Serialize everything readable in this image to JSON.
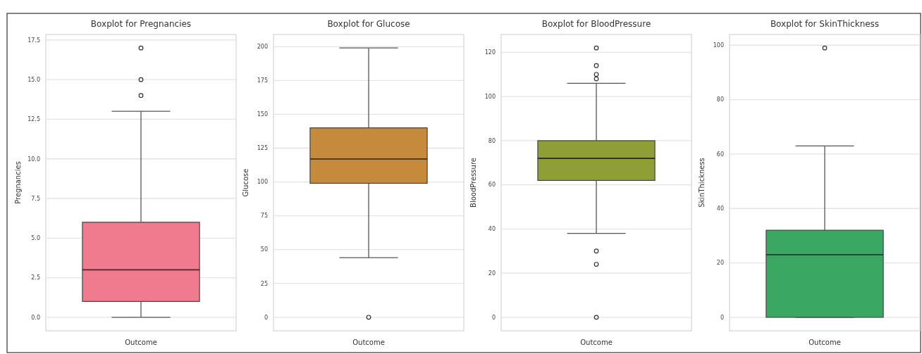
{
  "chart_data": [
    {
      "type": "box",
      "title": "Boxplot for Pregnancies",
      "xlabel": "Outcome",
      "ylabel": "Pregnancies",
      "categories": [
        null
      ],
      "color": "#f07a8e",
      "boxes": [
        {
          "low": 0,
          "q1": 1,
          "median": 3,
          "q3": 6,
          "high": 13,
          "outliers": [
            14,
            15,
            17
          ]
        }
      ],
      "ylim": [
        -0.85,
        17.85
      ],
      "yticks": [
        {
          "value": 0,
          "label": "0.0"
        },
        {
          "value": 2.5,
          "label": "2.5"
        },
        {
          "value": 5,
          "label": "5.0"
        },
        {
          "value": 7.5,
          "label": "7.5"
        },
        {
          "value": 10,
          "label": "10.0"
        },
        {
          "value": 12.5,
          "label": "12.5"
        },
        {
          "value": 15,
          "label": "15.0"
        },
        {
          "value": 17.5,
          "label": "17.5"
        }
      ],
      "grid": "y"
    },
    {
      "type": "box",
      "title": "Boxplot for Glucose",
      "xlabel": "Outcome",
      "ylabel": "Glucose",
      "categories": [
        null
      ],
      "color": "#c68b3a",
      "boxes": [
        {
          "low": 44,
          "q1": 99,
          "median": 117,
          "q3": 140,
          "high": 199,
          "outliers": [
            0
          ]
        }
      ],
      "ylim": [
        -10,
        209
      ],
      "yticks": [
        0,
        25,
        50,
        75,
        100,
        125,
        150,
        175,
        200
      ],
      "grid": "y"
    },
    {
      "type": "box",
      "title": "Boxplot for BloodPressure",
      "xlabel": "Outcome",
      "ylabel": "BloodPressure",
      "categories": [
        null
      ],
      "color": "#8f9e35",
      "boxes": [
        {
          "low": 38,
          "q1": 62,
          "median": 72,
          "q3": 80,
          "high": 106,
          "outliers": [
            0,
            24,
            30,
            108,
            110,
            114,
            122
          ]
        }
      ],
      "ylim": [
        -6.1,
        128.1
      ],
      "yticks": [
        0,
        20,
        40,
        60,
        80,
        100,
        120
      ],
      "grid": "y"
    },
    {
      "type": "box",
      "title": "Boxplot for SkinThickness",
      "xlabel": "Outcome",
      "ylabel": "SkinThickness",
      "categories": [
        null
      ],
      "color": "#3aa863",
      "boxes": [
        {
          "low": 0,
          "q1": 0,
          "median": 23,
          "q3": 32,
          "high": 63,
          "outliers": [
            99
          ]
        }
      ],
      "ylim": [
        -4.95,
        103.95
      ],
      "yticks": [
        0,
        20,
        40,
        60,
        80,
        100
      ],
      "grid": "y"
    }
  ]
}
